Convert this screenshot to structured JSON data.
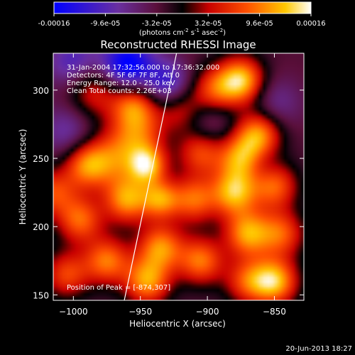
{
  "chart_data": {
    "type": "heatmap",
    "title": "Reconstructed RHESSI Image",
    "xlabel": "Heliocentric X (arcsec)",
    "ylabel": "Heliocentric Y (arcsec)",
    "xlim": [
      -1015,
      -828
    ],
    "ylim": [
      146,
      327
    ],
    "x_ticks": [
      -1000,
      -950,
      -900,
      -850
    ],
    "y_ticks": [
      150,
      200,
      250,
      300
    ],
    "colorbar": {
      "ticks": [
        "-0.00016",
        "-9.6e-05",
        "-3.2e-05",
        "3.2e-05",
        "9.6e-05",
        "0.00016"
      ],
      "range": [
        -0.00016,
        0.00016
      ],
      "unit_label_parts": [
        "(photons cm",
        "-2",
        " s",
        "-1",
        " asec",
        "-2",
        ")"
      ]
    },
    "annotations": [
      "31-Jan-2004 17:32:56.000 to 17:36:32.000",
      "Detectors: 4F 5F 6F 7F 8F, Att 0",
      "Energy Range: 12.0 - 25.0 keV",
      "Clean    Total counts: 2.26E+03"
    ],
    "peak_label": "Position of Peak = [-874,307]",
    "limb_line": [
      [
        -962,
        146
      ],
      [
        -923,
        327
      ]
    ],
    "sources": [
      {
        "x": -875,
        "y": 307,
        "v": 1.0,
        "s": 12
      },
      {
        "x": -862,
        "y": 268,
        "v": 0.85,
        "s": 12
      },
      {
        "x": -952,
        "y": 268,
        "v": 0.6,
        "s": 14
      },
      {
        "x": -985,
        "y": 300,
        "v": 0.55,
        "s": 14
      },
      {
        "x": -970,
        "y": 250,
        "v": 0.55,
        "s": 14
      },
      {
        "x": -945,
        "y": 245,
        "v": 0.9,
        "s": 10
      },
      {
        "x": -990,
        "y": 245,
        "v": 0.75,
        "s": 12
      },
      {
        "x": -960,
        "y": 220,
        "v": 0.85,
        "s": 12
      },
      {
        "x": -935,
        "y": 220,
        "v": 0.75,
        "s": 10
      },
      {
        "x": -910,
        "y": 220,
        "v": 0.7,
        "s": 12
      },
      {
        "x": -880,
        "y": 225,
        "v": 0.9,
        "s": 12
      },
      {
        "x": -850,
        "y": 230,
        "v": 0.7,
        "s": 12
      },
      {
        "x": -905,
        "y": 255,
        "v": 0.65,
        "s": 12
      },
      {
        "x": -875,
        "y": 250,
        "v": 0.8,
        "s": 12
      },
      {
        "x": -995,
        "y": 205,
        "v": 0.7,
        "s": 12
      },
      {
        "x": -870,
        "y": 195,
        "v": 0.85,
        "s": 12
      },
      {
        "x": -845,
        "y": 195,
        "v": 0.65,
        "s": 12
      },
      {
        "x": -935,
        "y": 185,
        "v": 0.8,
        "s": 12
      },
      {
        "x": -905,
        "y": 175,
        "v": 0.75,
        "s": 12
      },
      {
        "x": -975,
        "y": 175,
        "v": 0.75,
        "s": 12
      },
      {
        "x": -1005,
        "y": 165,
        "v": 0.6,
        "s": 12
      },
      {
        "x": -945,
        "y": 160,
        "v": 0.85,
        "s": 12
      },
      {
        "x": -955,
        "y": 290,
        "v": 0.7,
        "s": 12
      },
      {
        "x": -895,
        "y": 300,
        "v": 0.6,
        "s": 12
      },
      {
        "x": -850,
        "y": 160,
        "v": 0.95,
        "s": 12
      },
      {
        "x": -870,
        "y": 160,
        "v": 0.6,
        "s": 12
      },
      {
        "x": -1015,
        "y": 225,
        "v": 0.6,
        "s": 12
      },
      {
        "x": -920,
        "y": 285,
        "v": 0.45,
        "s": 12
      },
      {
        "x": -1000,
        "y": 320,
        "v": -0.5,
        "s": 14
      },
      {
        "x": -960,
        "y": 318,
        "v": -0.9,
        "s": 14
      },
      {
        "x": -930,
        "y": 305,
        "v": -0.55,
        "s": 12
      },
      {
        "x": -1005,
        "y": 270,
        "v": -0.35,
        "s": 14
      },
      {
        "x": -900,
        "y": 275,
        "v": -0.3,
        "s": 14
      },
      {
        "x": -850,
        "y": 290,
        "v": -0.3,
        "s": 14
      },
      {
        "x": -860,
        "y": 245,
        "v": -0.2,
        "s": 10
      }
    ]
  },
  "footer": {
    "timestamp": "20-Jun-2013 18:27"
  }
}
